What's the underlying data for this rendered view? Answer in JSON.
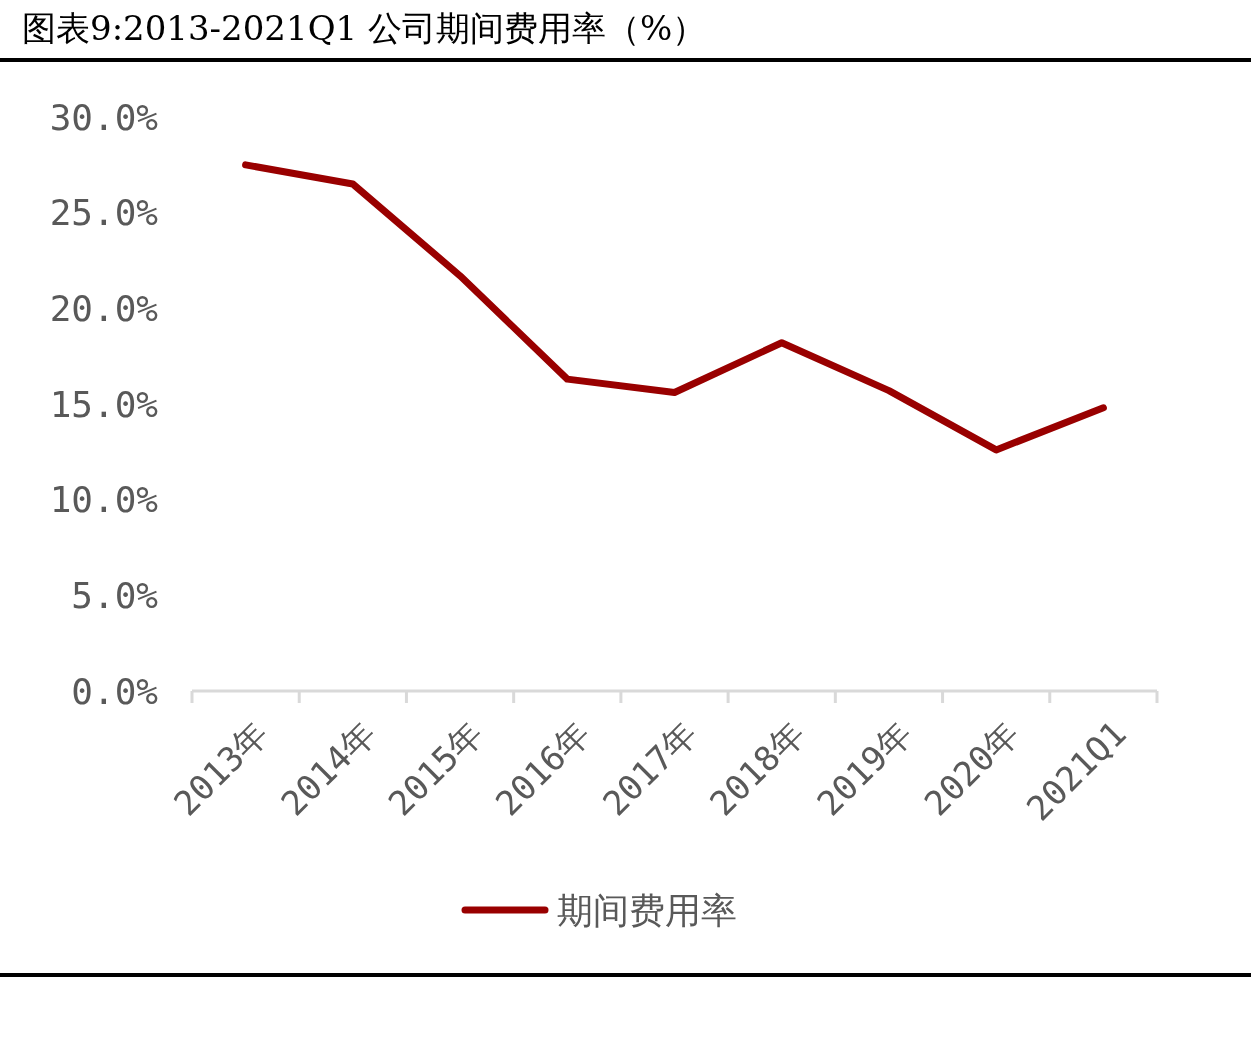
{
  "chart_data": {
    "type": "line",
    "title": "图表9:2013-2021Q1 公司期间费用率（%）",
    "categories": [
      "2013年",
      "2014年",
      "2015年",
      "2016年",
      "2017年",
      "2018年",
      "2019年",
      "2020年",
      "2021Q1"
    ],
    "series": [
      {
        "name": "期间费用率",
        "color": "#990000",
        "values": [
          27.5,
          26.5,
          21.7,
          16.3,
          15.6,
          18.2,
          15.7,
          12.6,
          14.8
        ]
      }
    ],
    "ylim": [
      0,
      30
    ],
    "yticks": [
      {
        "value": 0,
        "label": "0.0%"
      },
      {
        "value": 5,
        "label": "5.0%"
      },
      {
        "value": 10,
        "label": "10.0%"
      },
      {
        "value": 15,
        "label": "15.0%"
      },
      {
        "value": 20,
        "label": "20.0%"
      },
      {
        "value": 25,
        "label": "25.0%"
      },
      {
        "value": 30,
        "label": "30.0%"
      }
    ],
    "grid": false,
    "legend": "bottom",
    "marker": "none",
    "line_style": "solid"
  }
}
